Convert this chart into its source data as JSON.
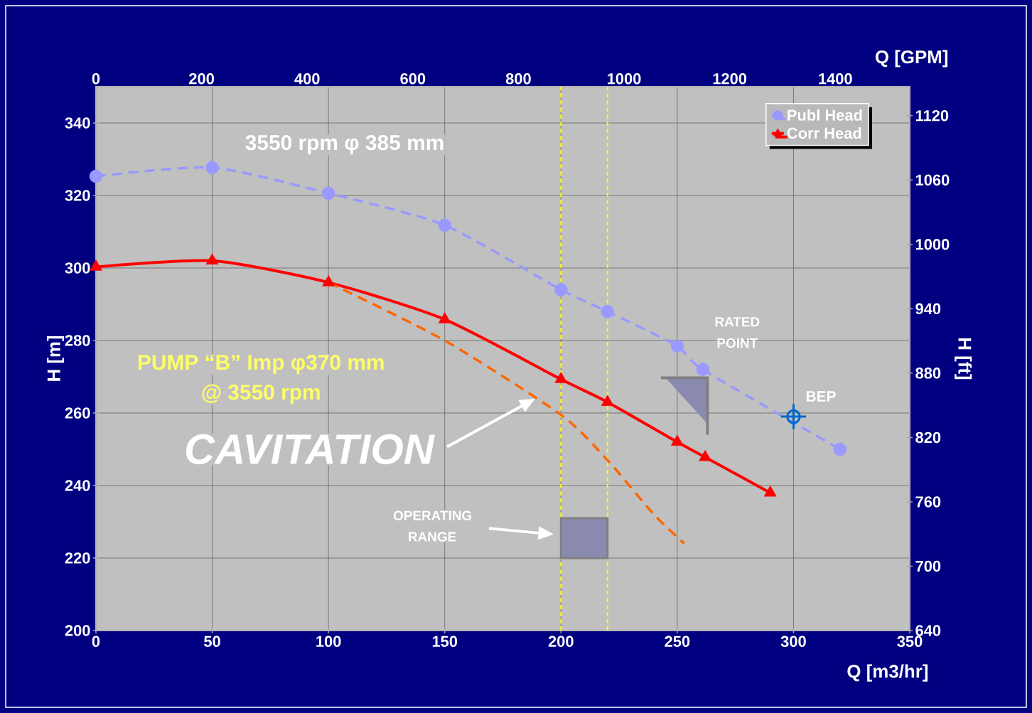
{
  "chart_data": {
    "type": "line",
    "xlabel": "Q [m3/hr]",
    "ylabel": "H [m]",
    "x2label": "Q [GPM]",
    "y2label": "H [ft]",
    "xlim": [
      0,
      350
    ],
    "xticks": [
      0,
      50,
      100,
      150,
      200,
      250,
      300,
      350
    ],
    "ylim": [
      200,
      350
    ],
    "yticks": [
      200,
      220,
      240,
      260,
      280,
      300,
      320,
      340
    ],
    "x2lim": [
      0,
      1541
    ],
    "x2ticks": [
      0,
      200,
      400,
      600,
      800,
      1000,
      1200,
      1400
    ],
    "y2lim": [
      640,
      1147
    ],
    "y2ticks": [
      640,
      700,
      760,
      820,
      880,
      940,
      1000,
      1060,
      1120
    ],
    "grid": true,
    "legend": "top right",
    "series": [
      {
        "name": "Publ Head",
        "color": "#9999ff",
        "marker": "circle",
        "line_style": "dashed",
        "x": [
          0,
          50,
          100,
          150,
          200,
          220,
          250,
          261,
          320
        ],
        "values": [
          325.3,
          327.7,
          320.6,
          311.8,
          294,
          288,
          278.5,
          272,
          250
        ]
      },
      {
        "name": "Corr Head",
        "color": "#ff0000",
        "marker": "triangle",
        "line_style": "solid",
        "x": [
          0,
          50,
          100,
          150,
          200,
          220,
          250,
          262,
          290
        ],
        "values": [
          300.3,
          302,
          296,
          285.8,
          269.3,
          263,
          252,
          247.8,
          238
        ]
      },
      {
        "color": "#ff6600",
        "marker": "none",
        "line_style": "dashed",
        "x": [
          100,
          150,
          200,
          220,
          240,
          253
        ],
        "values": [
          296,
          280,
          259.5,
          247,
          232,
          224
        ]
      },
      {
        "type": "scatter",
        "color": "#0066cc",
        "marker": "cross",
        "x": [
          300
        ],
        "values": [
          259
        ]
      }
    ],
    "ref_lines": [
      {
        "axis": "x",
        "value": 200,
        "color": "#ffff00",
        "line_style": "dashed"
      },
      {
        "axis": "x",
        "value": 220,
        "color": "#ffff00",
        "line_style": "dashed"
      }
    ],
    "annotations": [
      "3550 rpm φ 385 mm",
      "PUMP “B” Imp φ370 mm",
      "@ 3550 rpm",
      "CAVITATION",
      "OPERATING RANGE",
      "RATED POINT",
      {
        "text": "BEP",
        "x": 300,
        "y": 259
      }
    ]
  }
}
